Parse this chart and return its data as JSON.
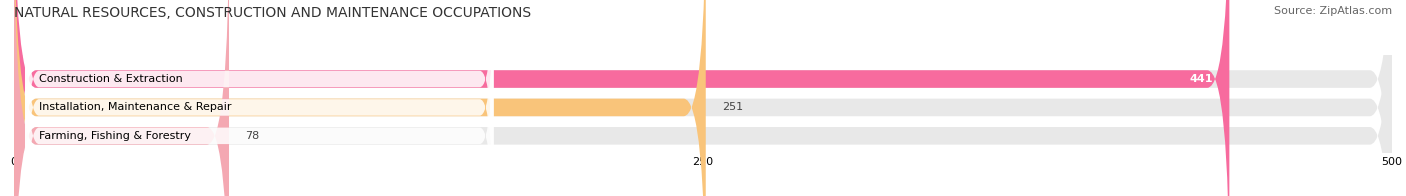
{
  "title": "NATURAL RESOURCES, CONSTRUCTION AND MAINTENANCE OCCUPATIONS",
  "source": "Source: ZipAtlas.com",
  "categories": [
    "Construction & Extraction",
    "Installation, Maintenance & Repair",
    "Farming, Fishing & Forestry"
  ],
  "values": [
    441,
    251,
    78
  ],
  "bar_colors": [
    "#f76b9e",
    "#f9c47a",
    "#f4a8b2"
  ],
  "xlim": [
    0,
    500
  ],
  "xticks": [
    0,
    250,
    500
  ],
  "bar_height": 0.62,
  "figsize": [
    14.06,
    1.96
  ],
  "dpi": 100,
  "bg_bar_color": "#e8e8e8",
  "label_fontsize": 8.0,
  "title_fontsize": 10.0,
  "value_fontsize": 8.0,
  "source_fontsize": 8.0,
  "label_box_color": "white",
  "value_inside_threshold": 400
}
